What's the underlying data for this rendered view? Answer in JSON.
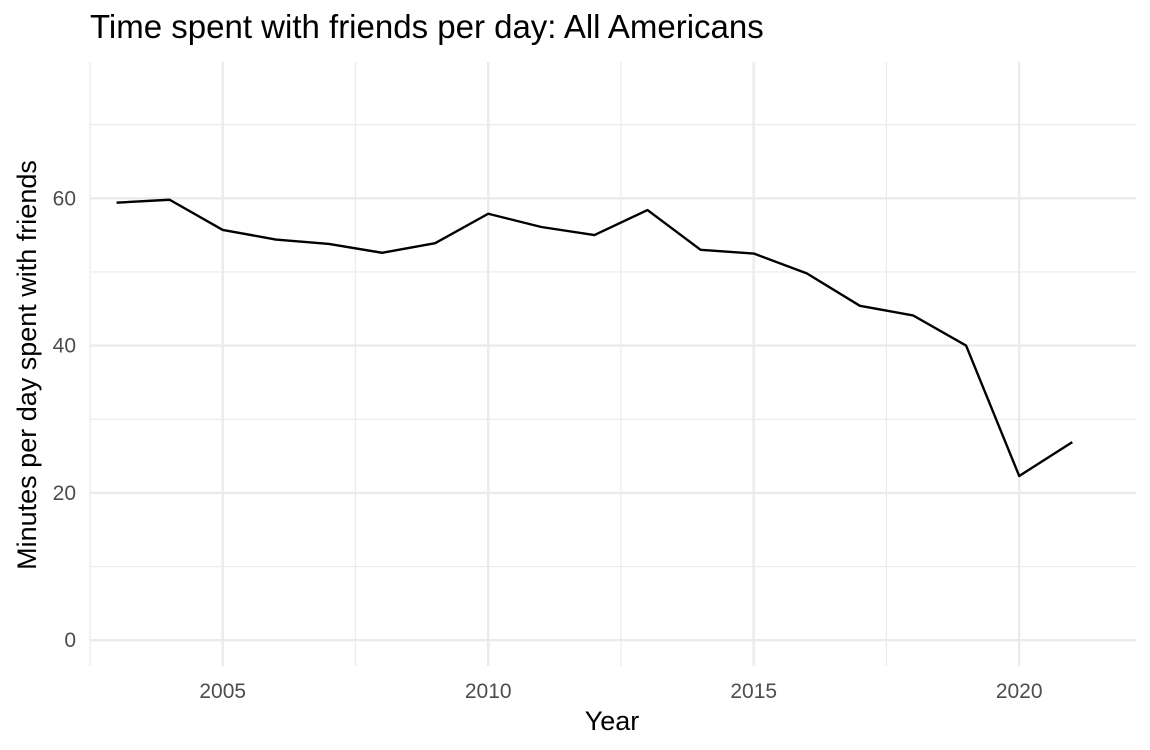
{
  "chart_data": {
    "type": "line",
    "title": "Time spent with friends per day: All Americans",
    "xlabel": "Year",
    "ylabel": "Minutes per day spent with friends",
    "xlim": [
      2002.5,
      2022.2
    ],
    "ylim": [
      -3.5,
      78.5
    ],
    "x_major_ticks": [
      2005,
      2010,
      2015,
      2020
    ],
    "x_minor_ticks": [
      2002.5,
      2007.5,
      2012.5,
      2017.5
    ],
    "y_major_ticks": [
      0,
      20,
      40,
      60
    ],
    "y_minor_ticks": [
      10,
      30,
      50,
      70
    ],
    "grid": true,
    "legend": "none",
    "line_color": "#000000",
    "grid_color": "#ebebeb",
    "series": [
      {
        "x": [
          2003,
          2004,
          2005,
          2006,
          2007,
          2008,
          2009,
          2010,
          2011,
          2012,
          2013,
          2014,
          2015,
          2016,
          2017,
          2018,
          2019,
          2020,
          2021
        ],
        "values": [
          59.4,
          59.8,
          55.7,
          54.4,
          53.8,
          52.6,
          53.9,
          57.9,
          56.1,
          55.0,
          58.4,
          53.0,
          52.5,
          49.8,
          45.4,
          44.1,
          40.0,
          22.3,
          26.9
        ]
      }
    ]
  }
}
